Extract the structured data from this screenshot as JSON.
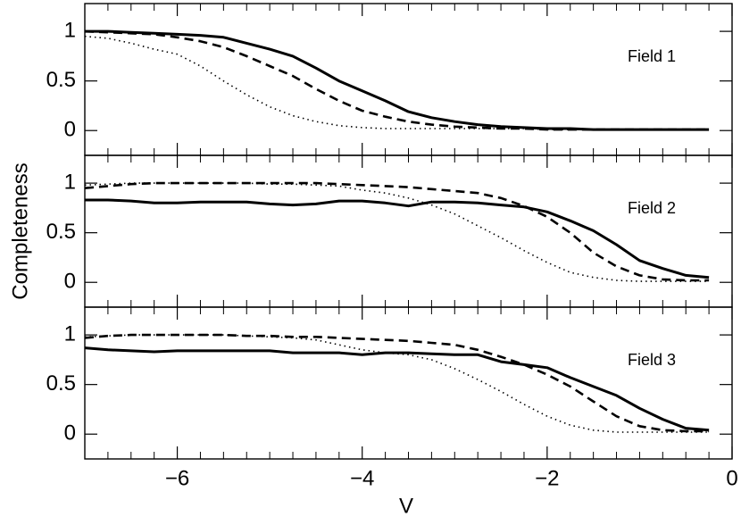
{
  "chart_data": {
    "type": "line",
    "xlabel": "V",
    "ylabel": "Completeness",
    "xlim": [
      -7,
      0
    ],
    "xticks": [
      {
        "value": -6,
        "label": "−6"
      },
      {
        "value": -4,
        "label": "−4"
      },
      {
        "value": -2,
        "label": "−2"
      },
      0
    ],
    "xminorticks": [
      -6.75,
      -6.5,
      -6.25,
      -5.75,
      -5.5,
      -5.25,
      -5,
      -4.75,
      -4.5,
      -4.25,
      -3.75,
      -3.5,
      -3.25,
      -3,
      -2.75,
      -2.5,
      -2.25,
      -1.75,
      -1.5,
      -1.25,
      -1,
      -0.75,
      -0.5,
      -0.25
    ],
    "x": [
      -7,
      -6.75,
      -6.5,
      -6.25,
      -6,
      -5.75,
      -5.5,
      -5.25,
      -5,
      -4.75,
      -4.5,
      -4.25,
      -4,
      -3.75,
      -3.5,
      -3.25,
      -3,
      -2.75,
      -2.5,
      -2.25,
      -2,
      -1.75,
      -1.5,
      -1.25,
      -1,
      -0.75,
      -0.5,
      -0.25
    ],
    "panels": [
      {
        "annotation": "Field 1",
        "ylim": [
          -0.25,
          1.28
        ],
        "yticks": [
          0,
          0.5,
          1
        ],
        "series": [
          {
            "color": "#000000",
            "style": "solid",
            "values": [
              1,
              1,
              0.99,
              0.98,
              0.97,
              0.96,
              0.94,
              0.88,
              0.82,
              0.75,
              0.63,
              0.5,
              0.4,
              0.3,
              0.19,
              0.13,
              0.09,
              0.06,
              0.04,
              0.03,
              0.02,
              0.02,
              0.01,
              0.01,
              0.01,
              0.01,
              0.01,
              0.01
            ]
          },
          {
            "color": "#000000",
            "style": "dashed",
            "values": [
              1,
              0.99,
              0.98,
              0.97,
              0.94,
              0.9,
              0.84,
              0.75,
              0.65,
              0.55,
              0.42,
              0.3,
              0.2,
              0.14,
              0.09,
              0.06,
              0.04,
              0.03,
              0.02,
              0.02,
              0.01,
              0.01,
              0.01,
              0.01,
              0.01,
              0.01,
              0.01,
              0.01
            ]
          },
          {
            "color": "#000000",
            "style": "dotted",
            "values": [
              0.95,
              0.93,
              0.88,
              0.82,
              0.77,
              0.65,
              0.5,
              0.36,
              0.24,
              0.15,
              0.09,
              0.05,
              0.03,
              0.02,
              0.02,
              0.02,
              0.02,
              0.02,
              0.02,
              0.02,
              0.01,
              0.01,
              0.01,
              0.01,
              0.01,
              0.01,
              0.01,
              0.01
            ]
          }
        ]
      },
      {
        "annotation": "Field 2",
        "ylim": [
          -0.25,
          1.28
        ],
        "yticks": [
          0,
          0.5,
          1
        ],
        "series": [
          {
            "color": "#000000",
            "style": "solid",
            "values": [
              0.83,
              0.83,
              0.82,
              0.8,
              0.8,
              0.81,
              0.81,
              0.81,
              0.79,
              0.78,
              0.79,
              0.82,
              0.82,
              0.8,
              0.77,
              0.81,
              0.81,
              0.8,
              0.78,
              0.76,
              0.71,
              0.62,
              0.52,
              0.38,
              0.22,
              0.14,
              0.07,
              0.05
            ]
          },
          {
            "color": "#000000",
            "style": "dashed",
            "values": [
              0.95,
              0.97,
              0.99,
              1,
              1,
              1,
              1,
              1,
              1,
              1,
              1,
              0.99,
              0.98,
              0.97,
              0.96,
              0.94,
              0.92,
              0.9,
              0.85,
              0.77,
              0.66,
              0.5,
              0.3,
              0.16,
              0.07,
              0.03,
              0.02,
              0.02
            ]
          },
          {
            "color": "#000000",
            "style": "dotted",
            "values": [
              0.98,
              0.99,
              1,
              1,
              1,
              1,
              1,
              1,
              0.99,
              0.99,
              0.98,
              0.97,
              0.93,
              0.9,
              0.85,
              0.78,
              0.69,
              0.57,
              0.45,
              0.32,
              0.2,
              0.1,
              0.05,
              0.02,
              0.01,
              0.01,
              0.01,
              0.01
            ]
          }
        ]
      },
      {
        "annotation": "Field 3",
        "ylim": [
          -0.25,
          1.28
        ],
        "yticks": [
          0,
          0.5,
          1
        ],
        "series": [
          {
            "color": "#000000",
            "style": "solid",
            "values": [
              0.87,
              0.85,
              0.84,
              0.83,
              0.84,
              0.84,
              0.84,
              0.84,
              0.84,
              0.82,
              0.82,
              0.82,
              0.8,
              0.82,
              0.82,
              0.81,
              0.8,
              0.8,
              0.73,
              0.7,
              0.67,
              0.57,
              0.48,
              0.39,
              0.26,
              0.15,
              0.06,
              0.04
            ]
          },
          {
            "color": "#000000",
            "style": "dashed",
            "values": [
              0.97,
              0.99,
              1,
              1,
              1,
              1,
              1,
              0.99,
              0.99,
              0.98,
              0.98,
              0.97,
              0.96,
              0.95,
              0.94,
              0.92,
              0.9,
              0.85,
              0.78,
              0.7,
              0.6,
              0.48,
              0.33,
              0.18,
              0.08,
              0.04,
              0.03,
              0.03
            ]
          },
          {
            "color": "#000000",
            "style": "dotted",
            "values": [
              0.98,
              0.99,
              1,
              1,
              1,
              1,
              1,
              0.99,
              0.98,
              0.97,
              0.95,
              0.9,
              0.85,
              0.82,
              0.8,
              0.75,
              0.66,
              0.55,
              0.43,
              0.3,
              0.18,
              0.09,
              0.04,
              0.02,
              0.02,
              0.02,
              0.02,
              0.02
            ]
          }
        ]
      }
    ]
  }
}
